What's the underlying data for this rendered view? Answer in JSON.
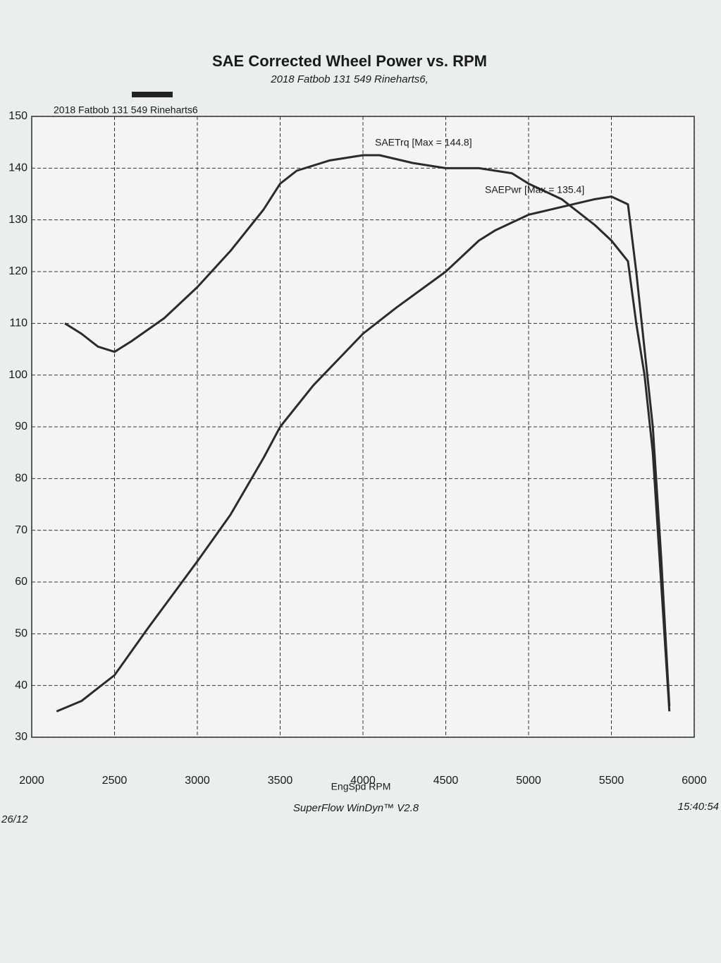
{
  "chart_data": {
    "type": "line",
    "title": "SAE Corrected Wheel Power vs. RPM",
    "subtitle": "2018 Fatbob 131 549 Rineharts6,",
    "run_label": "2018 Fatbob 131 549 Rineharts6",
    "x_label": "EngSpd  RPM",
    "footer": "SuperFlow WinDyn™ V2.8",
    "time": "15:40:54",
    "date": "26/12",
    "annotations": [
      "SAETrq [Max = 144.8]",
      "SAEPwr [Max = 135.4]"
    ],
    "xlim": [
      2000,
      6000
    ],
    "xticks": [
      2000,
      2500,
      3000,
      3500,
      4000,
      4500,
      5000,
      5500,
      6000
    ],
    "ylim": [
      30,
      150
    ],
    "yticks": [
      30,
      40,
      50,
      60,
      70,
      80,
      90,
      100,
      110,
      120,
      130,
      140,
      150
    ],
    "grid": true,
    "series": [
      {
        "color": "#2b2b2b",
        "x": [
          2200,
          2300,
          2400,
          2500,
          2600,
          2800,
          3000,
          3200,
          3400,
          3500,
          3600,
          3800,
          4000,
          4100,
          4300,
          4500,
          4700,
          4900,
          5000,
          5200,
          5400,
          5500,
          5600,
          5650,
          5700,
          5750,
          5800,
          5850
        ],
        "values": [
          110,
          108,
          105.5,
          104.5,
          106.5,
          111,
          117,
          124,
          132,
          137,
          139.5,
          141.5,
          142.5,
          142.5,
          141,
          140,
          140,
          139,
          137,
          134,
          129,
          126,
          122,
          110,
          100,
          85,
          60,
          35
        ]
      },
      {
        "color": "#2b2b2b",
        "x": [
          2150,
          2300,
          2500,
          2700,
          3000,
          3200,
          3400,
          3500,
          3700,
          4000,
          4200,
          4500,
          4700,
          4800,
          5000,
          5200,
          5400,
          5500,
          5600,
          5650,
          5700,
          5750,
          5800,
          5850
        ],
        "values": [
          35,
          37,
          42,
          51,
          64,
          73,
          84,
          90,
          98,
          108,
          113,
          120,
          126,
          128,
          131,
          132.5,
          134,
          134.5,
          133,
          120,
          105,
          90,
          65,
          36
        ]
      }
    ]
  }
}
